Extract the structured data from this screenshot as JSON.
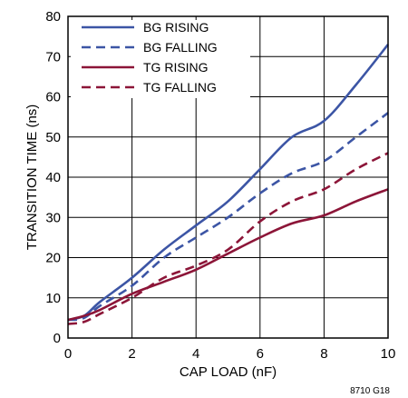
{
  "chart_data": {
    "type": "line",
    "xlabel": "CAP LOAD (nF)",
    "ylabel": "TRANSITION TIME (ns)",
    "xlim": [
      0,
      10
    ],
    "ylim": [
      0,
      80
    ],
    "xticks": [
      "0",
      "2",
      "4",
      "6",
      "8",
      "10"
    ],
    "yticks": [
      "0",
      "10",
      "20",
      "30",
      "40",
      "50",
      "60",
      "70",
      "80"
    ],
    "grid": true,
    "legend_position": "top-left",
    "figure_id": "8710 G18",
    "series": [
      {
        "name": "BG RISING",
        "color": "#3c55a5",
        "dash": "solid",
        "x": [
          0,
          0.5,
          1,
          2,
          3,
          4,
          5,
          6,
          7,
          8,
          9,
          10
        ],
        "y": [
          4.5,
          5.5,
          9,
          15,
          22,
          28,
          34,
          42,
          50,
          54,
          63,
          73
        ]
      },
      {
        "name": "BG FALLING",
        "color": "#3c55a5",
        "dash": "dashed",
        "x": [
          0,
          0.5,
          1,
          2,
          3,
          4,
          5,
          6,
          7,
          8,
          9,
          10
        ],
        "y": [
          4.5,
          5,
          8,
          13,
          20,
          25,
          30,
          36,
          41,
          44,
          50,
          56
        ]
      },
      {
        "name": "TG RISING",
        "color": "#8c1538",
        "dash": "solid",
        "x": [
          0,
          0.5,
          1,
          2,
          3,
          4,
          5,
          6,
          7,
          8,
          9,
          10
        ],
        "y": [
          4.5,
          5.5,
          7,
          11,
          14,
          17,
          21,
          25,
          28.5,
          30.5,
          34,
          37
        ]
      },
      {
        "name": "TG FALLING",
        "color": "#8c1538",
        "dash": "dashed",
        "x": [
          0,
          0.5,
          1,
          2,
          3,
          4,
          5,
          6,
          7,
          8,
          9,
          10
        ],
        "y": [
          3.5,
          4,
          6,
          10,
          15,
          18,
          22,
          29,
          34,
          37,
          42,
          46
        ]
      }
    ]
  }
}
